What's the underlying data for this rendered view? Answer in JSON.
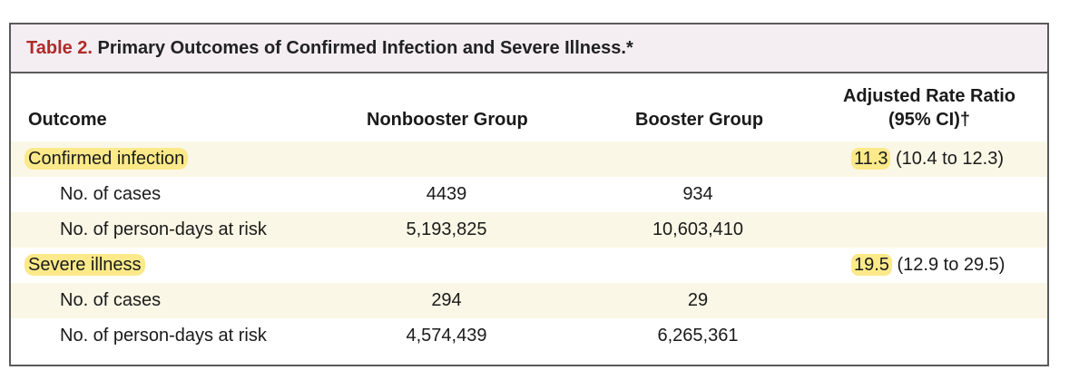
{
  "table": {
    "title_label": "Table 2.",
    "title_text": " Primary Outcomes of Confirmed Infection and Severe Illness.*",
    "headers": {
      "outcome": "Outcome",
      "nonbooster": "Nonbooster Group",
      "booster": "Booster Group",
      "ratio_line1": "Adjusted Rate Ratio",
      "ratio_line2": "(95% CI)†"
    },
    "rows": [
      {
        "label": "Confirmed infection",
        "nonbooster": "",
        "booster": "",
        "ratio_value": "11.3",
        "ratio_ci": " (10.4 to 12.3)"
      },
      {
        "label": "No. of cases",
        "nonbooster": "4439",
        "booster": "934",
        "ratio_value": "",
        "ratio_ci": ""
      },
      {
        "label": "No. of person-days at risk",
        "nonbooster": "5,193,825",
        "booster": "10,603,410",
        "ratio_value": "",
        "ratio_ci": ""
      },
      {
        "label": "Severe illness",
        "nonbooster": "",
        "booster": "",
        "ratio_value": "19.5",
        "ratio_ci": " (12.9 to 29.5)"
      },
      {
        "label": "No. of cases",
        "nonbooster": "294",
        "booster": "29",
        "ratio_value": "",
        "ratio_ci": ""
      },
      {
        "label": "No. of person-days at risk",
        "nonbooster": "4,574,439",
        "booster": "6,265,361",
        "ratio_value": "",
        "ratio_ci": ""
      }
    ]
  },
  "colors": {
    "title_label": "#b02a2a",
    "title_bar_bg": "#f4eef2",
    "row_shade": "#fbf7e6",
    "highlight": "#fbe98a"
  }
}
